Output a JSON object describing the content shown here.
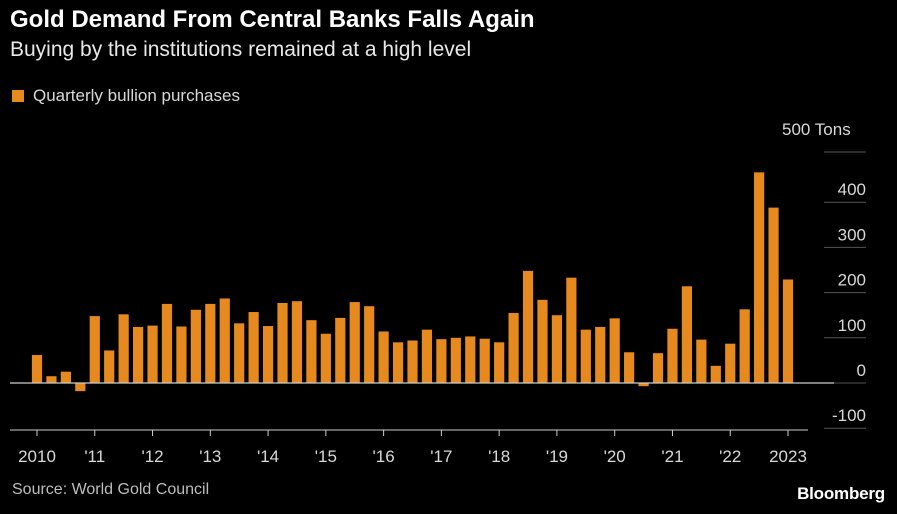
{
  "header": {
    "title": "Gold Demand From Central Banks Falls Again",
    "subtitle": "Buying by the institutions remained at a high level"
  },
  "legend": {
    "label": "Quarterly bullion purchases"
  },
  "footer": {
    "source": "Source: World Gold Council",
    "brand": "Bloomberg"
  },
  "colors": {
    "bar": "#e68a1f",
    "background": "#000000",
    "grid": "#555555",
    "axis": "#cccccc"
  },
  "chart_data": {
    "type": "bar",
    "ylabel": "Tons",
    "ylim": [
      -100,
      500
    ],
    "yticks": [
      500,
      400,
      300,
      200,
      100,
      0,
      -100
    ],
    "y_unit_label": "Tons",
    "grid": true,
    "x_tick_labels": [
      "2010",
      "'11",
      "'12",
      "'13",
      "'14",
      "'15",
      "'16",
      "'17",
      "'18",
      "'19",
      "'20",
      "'21",
      "'22",
      "2023"
    ],
    "series": [
      {
        "values": [
          62,
          15,
          25,
          -18,
          148,
          72,
          152,
          124,
          127,
          175,
          125,
          162,
          175,
          187,
          132,
          157,
          126,
          177,
          181,
          139,
          109,
          144,
          179,
          170,
          114,
          90,
          94,
          118,
          97,
          100,
          103,
          98,
          90,
          155,
          248,
          184,
          150,
          233,
          118,
          124,
          143,
          68,
          -7,
          66,
          120,
          214,
          96,
          38,
          87,
          163,
          466,
          388,
          229
        ]
      }
    ]
  }
}
